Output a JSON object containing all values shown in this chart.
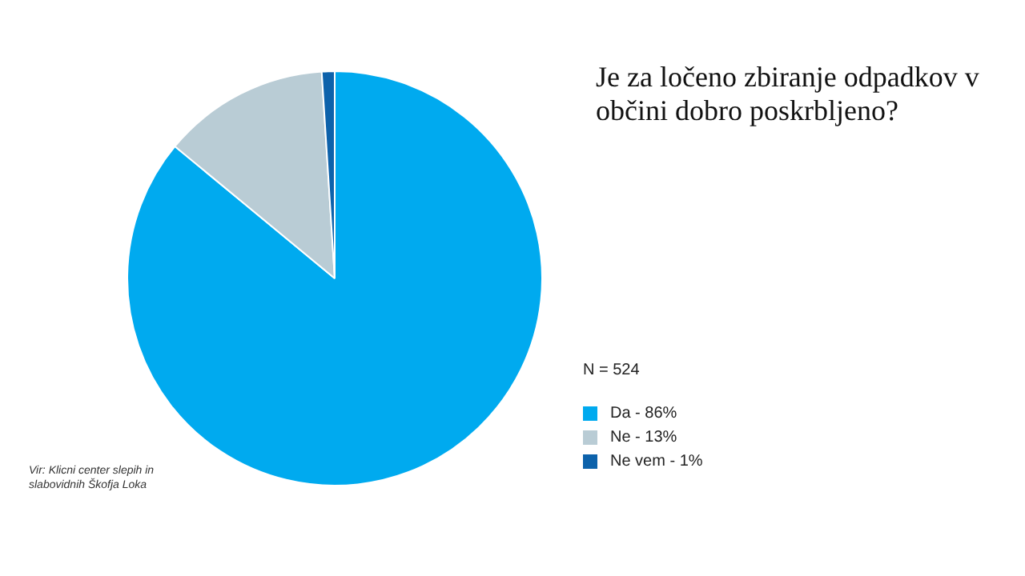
{
  "chart_data": {
    "type": "pie",
    "title": "Je za ločeno zbiranje odpadkov v občini dobro poskrbljeno?",
    "categories": [
      "Da - 86%",
      "Ne - 13%",
      "Ne vem - 1%"
    ],
    "values": [
      86,
      13,
      1
    ],
    "colors": [
      "#00aaef",
      "#b9ccd5",
      "#0d62ab"
    ],
    "legend": "right",
    "legend_title": "N = 524",
    "annotations": [
      "Vir: Klicni center slepih in slabovidnih Škofja Loka"
    ]
  }
}
